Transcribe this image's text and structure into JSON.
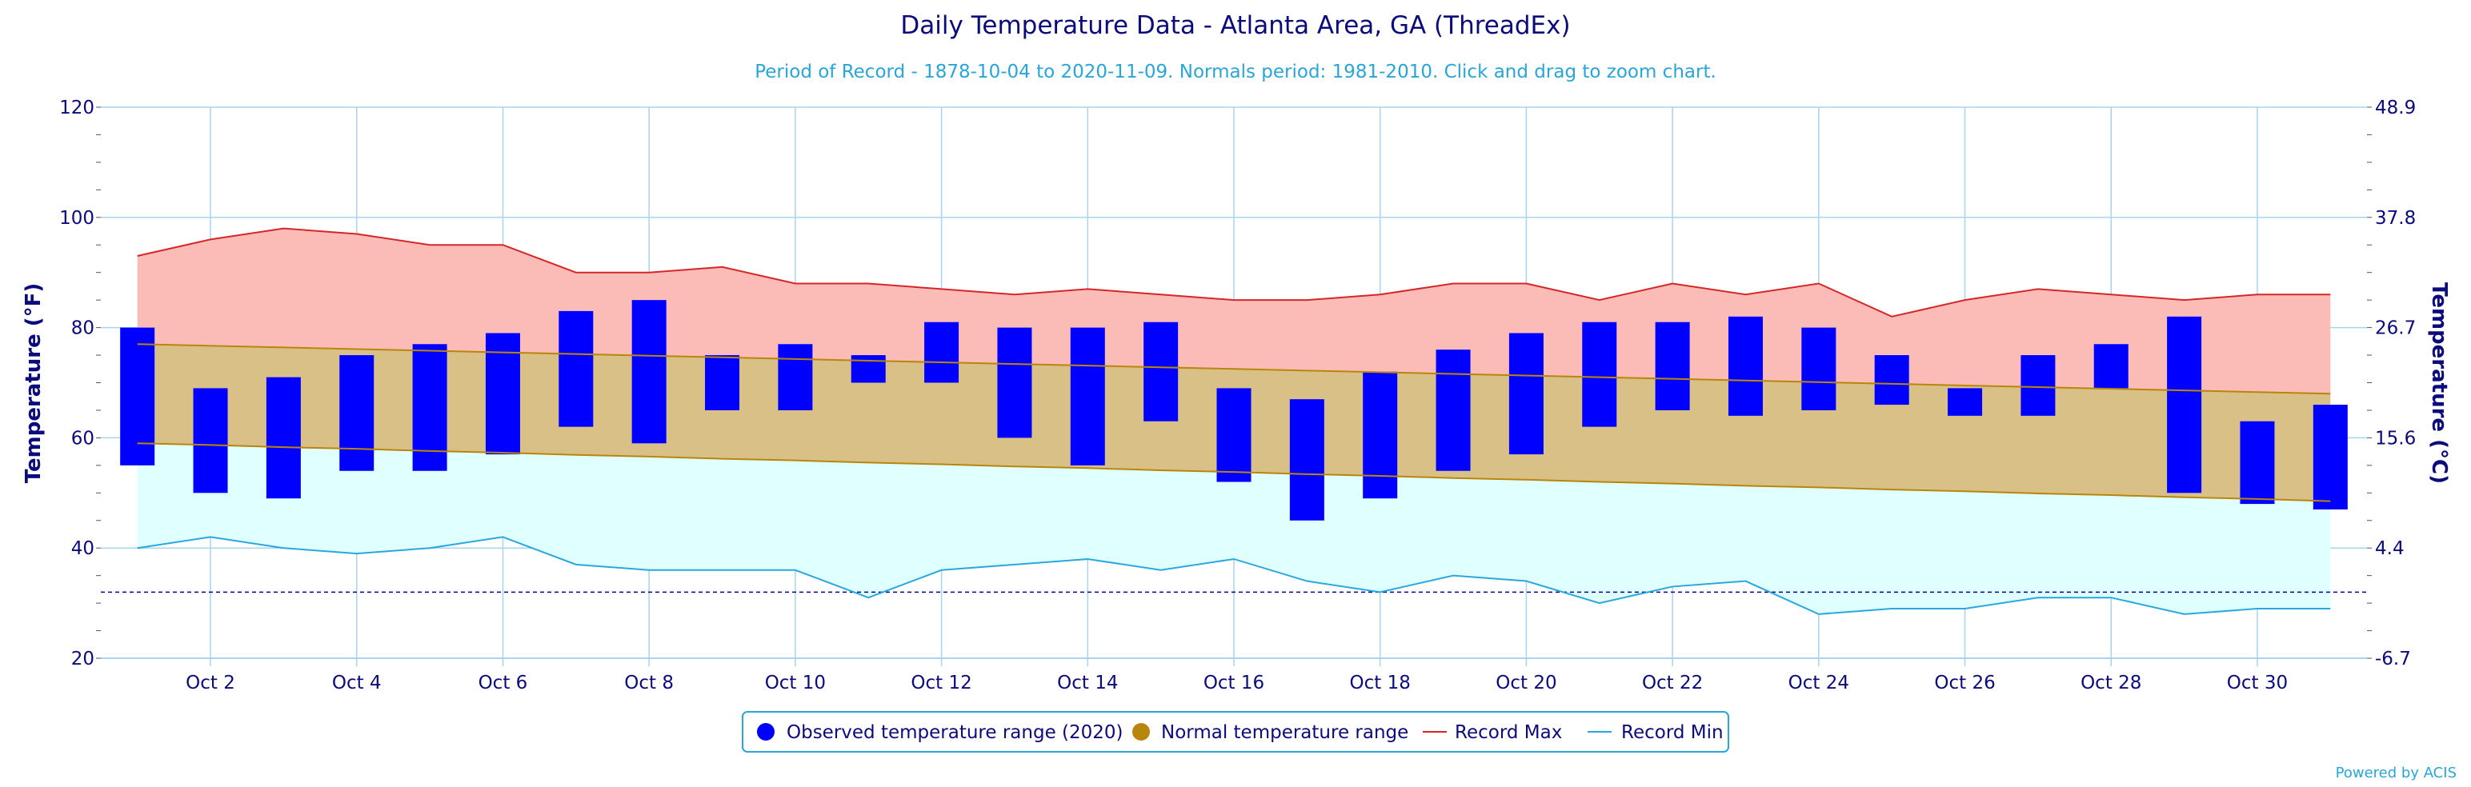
{
  "chart_data": {
    "type": "bar",
    "title": "Daily Temperature Data - Atlanta Area, GA (ThreadEx)",
    "subtitle": "Period of Record - 1878-10-04 to 2020-11-09. Normals period: 1981-2010. Click and drag to zoom chart.",
    "ylabel": "Temperature (°F)",
    "ylabel_right": "Temperature (°C)",
    "ylim": [
      20,
      120
    ],
    "yticks": [
      "20",
      "40",
      "60",
      "80",
      "100",
      "120"
    ],
    "yticks_right": [
      "-6.7",
      "4.4",
      "15.6",
      "26.7",
      "37.8",
      "48.9"
    ],
    "x_tick_labels": [
      "Oct 2",
      "Oct 4",
      "Oct 6",
      "Oct 8",
      "Oct 10",
      "Oct 12",
      "Oct 14",
      "Oct 16",
      "Oct 18",
      "Oct 20",
      "Oct 22",
      "Oct 24",
      "Oct 26",
      "Oct 28",
      "Oct 30"
    ],
    "days": [
      1,
      2,
      3,
      4,
      5,
      6,
      7,
      8,
      9,
      10,
      11,
      12,
      13,
      14,
      15,
      16,
      17,
      18,
      19,
      20,
      21,
      22,
      23,
      24,
      25,
      26,
      27,
      28,
      29,
      30,
      31
    ],
    "observed_high": [
      80,
      69,
      71,
      75,
      77,
      79,
      83,
      85,
      75,
      77,
      75,
      81,
      80,
      80,
      81,
      69,
      67,
      72,
      76,
      79,
      81,
      81,
      82,
      80,
      75,
      69,
      75,
      77,
      82,
      63,
      66
    ],
    "observed_low": [
      55,
      50,
      49,
      54,
      54,
      57,
      62,
      59,
      65,
      65,
      70,
      70,
      60,
      55,
      63,
      52,
      45,
      49,
      54,
      57,
      62,
      65,
      64,
      65,
      66,
      64,
      64,
      69,
      50,
      48,
      47
    ],
    "normal_high": [
      77,
      76.7,
      76.4,
      76.1,
      75.8,
      75.5,
      75.2,
      74.9,
      74.6,
      74.3,
      74,
      73.7,
      73.4,
      73.1,
      72.8,
      72.5,
      72.2,
      71.9,
      71.6,
      71.3,
      71,
      70.7,
      70.4,
      70.1,
      69.8,
      69.5,
      69.2,
      68.9,
      68.6,
      68.3,
      68
    ],
    "normal_low": [
      59,
      58.7,
      58.3,
      58,
      57.6,
      57.3,
      56.9,
      56.6,
      56.2,
      55.9,
      55.5,
      55.2,
      54.8,
      54.5,
      54.1,
      53.8,
      53.4,
      53.1,
      52.7,
      52.4,
      52,
      51.7,
      51.3,
      51,
      50.6,
      50.3,
      49.9,
      49.6,
      49.2,
      48.9,
      48.5
    ],
    "record_max": [
      93,
      96,
      98,
      97,
      95,
      95,
      90,
      90,
      91,
      88,
      88,
      87,
      86,
      87,
      86,
      85,
      85,
      86,
      88,
      88,
      85,
      88,
      86,
      88,
      82,
      85,
      87,
      86,
      85,
      86,
      86
    ],
    "record_min": [
      40,
      42,
      40,
      39,
      40,
      42,
      37,
      36,
      36,
      36,
      31,
      36,
      37,
      38,
      36,
      38,
      34,
      32,
      35,
      34,
      30,
      33,
      34,
      28,
      29,
      29,
      31,
      31,
      28,
      29,
      29
    ],
    "freezing_line": 32,
    "legend": [
      "Observed temperature range (2020)",
      "Normal temperature range",
      "Record Max",
      "Record Min"
    ],
    "legend_placement": "bottom-center",
    "grid": true,
    "credit": "Powered by ACIS",
    "colors": {
      "observed": "#0000ff",
      "normal_fill": "#d9c087",
      "normal_marker": "#b8860b",
      "normal_line": "#b8860b",
      "record_max_fill": "#fbbcb8",
      "record_max_line": "#d62728",
      "record_min_fill": "#e0ffff",
      "record_min_line": "#29a8de",
      "grid": "#a9d4ef",
      "freezing": "#00008b",
      "text": "#0b0b7c"
    }
  }
}
